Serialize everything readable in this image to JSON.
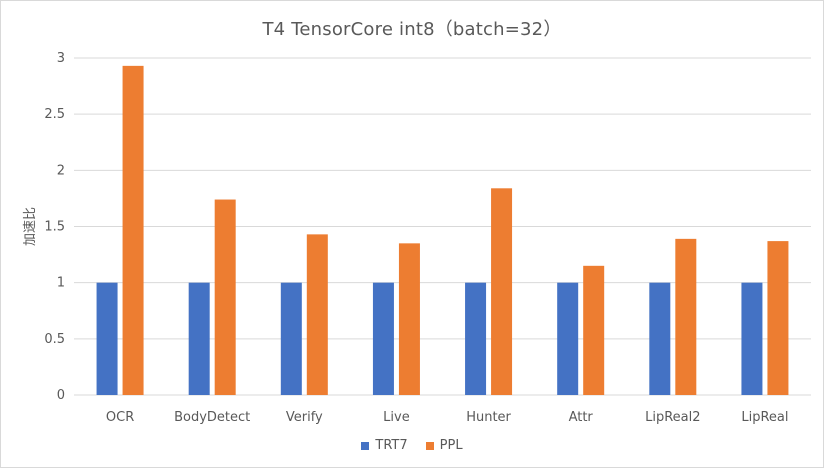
{
  "chart_data": {
    "type": "bar",
    "title": "T4 TensorCore  int8（batch=32）",
    "xlabel": "",
    "ylabel": "加速比",
    "categories": [
      "OCR",
      "BodyDetect",
      "Verify",
      "Live",
      "Hunter",
      "Attr",
      "LipReal2",
      "LipReal"
    ],
    "series": [
      {
        "name": "TRT7",
        "color": "#4472C4",
        "values": [
          1,
          1,
          1,
          1,
          1,
          1,
          1,
          1
        ]
      },
      {
        "name": "PPL",
        "color": "#ED7D31",
        "values": [
          2.93,
          1.74,
          1.43,
          1.35,
          1.84,
          1.15,
          1.39,
          1.37
        ]
      }
    ],
    "ylim": [
      0,
      3
    ],
    "yticks": [
      "0",
      "0.5",
      "1",
      "1.5",
      "2",
      "2.5",
      "3"
    ],
    "grid": true,
    "legend_position": "bottom"
  }
}
